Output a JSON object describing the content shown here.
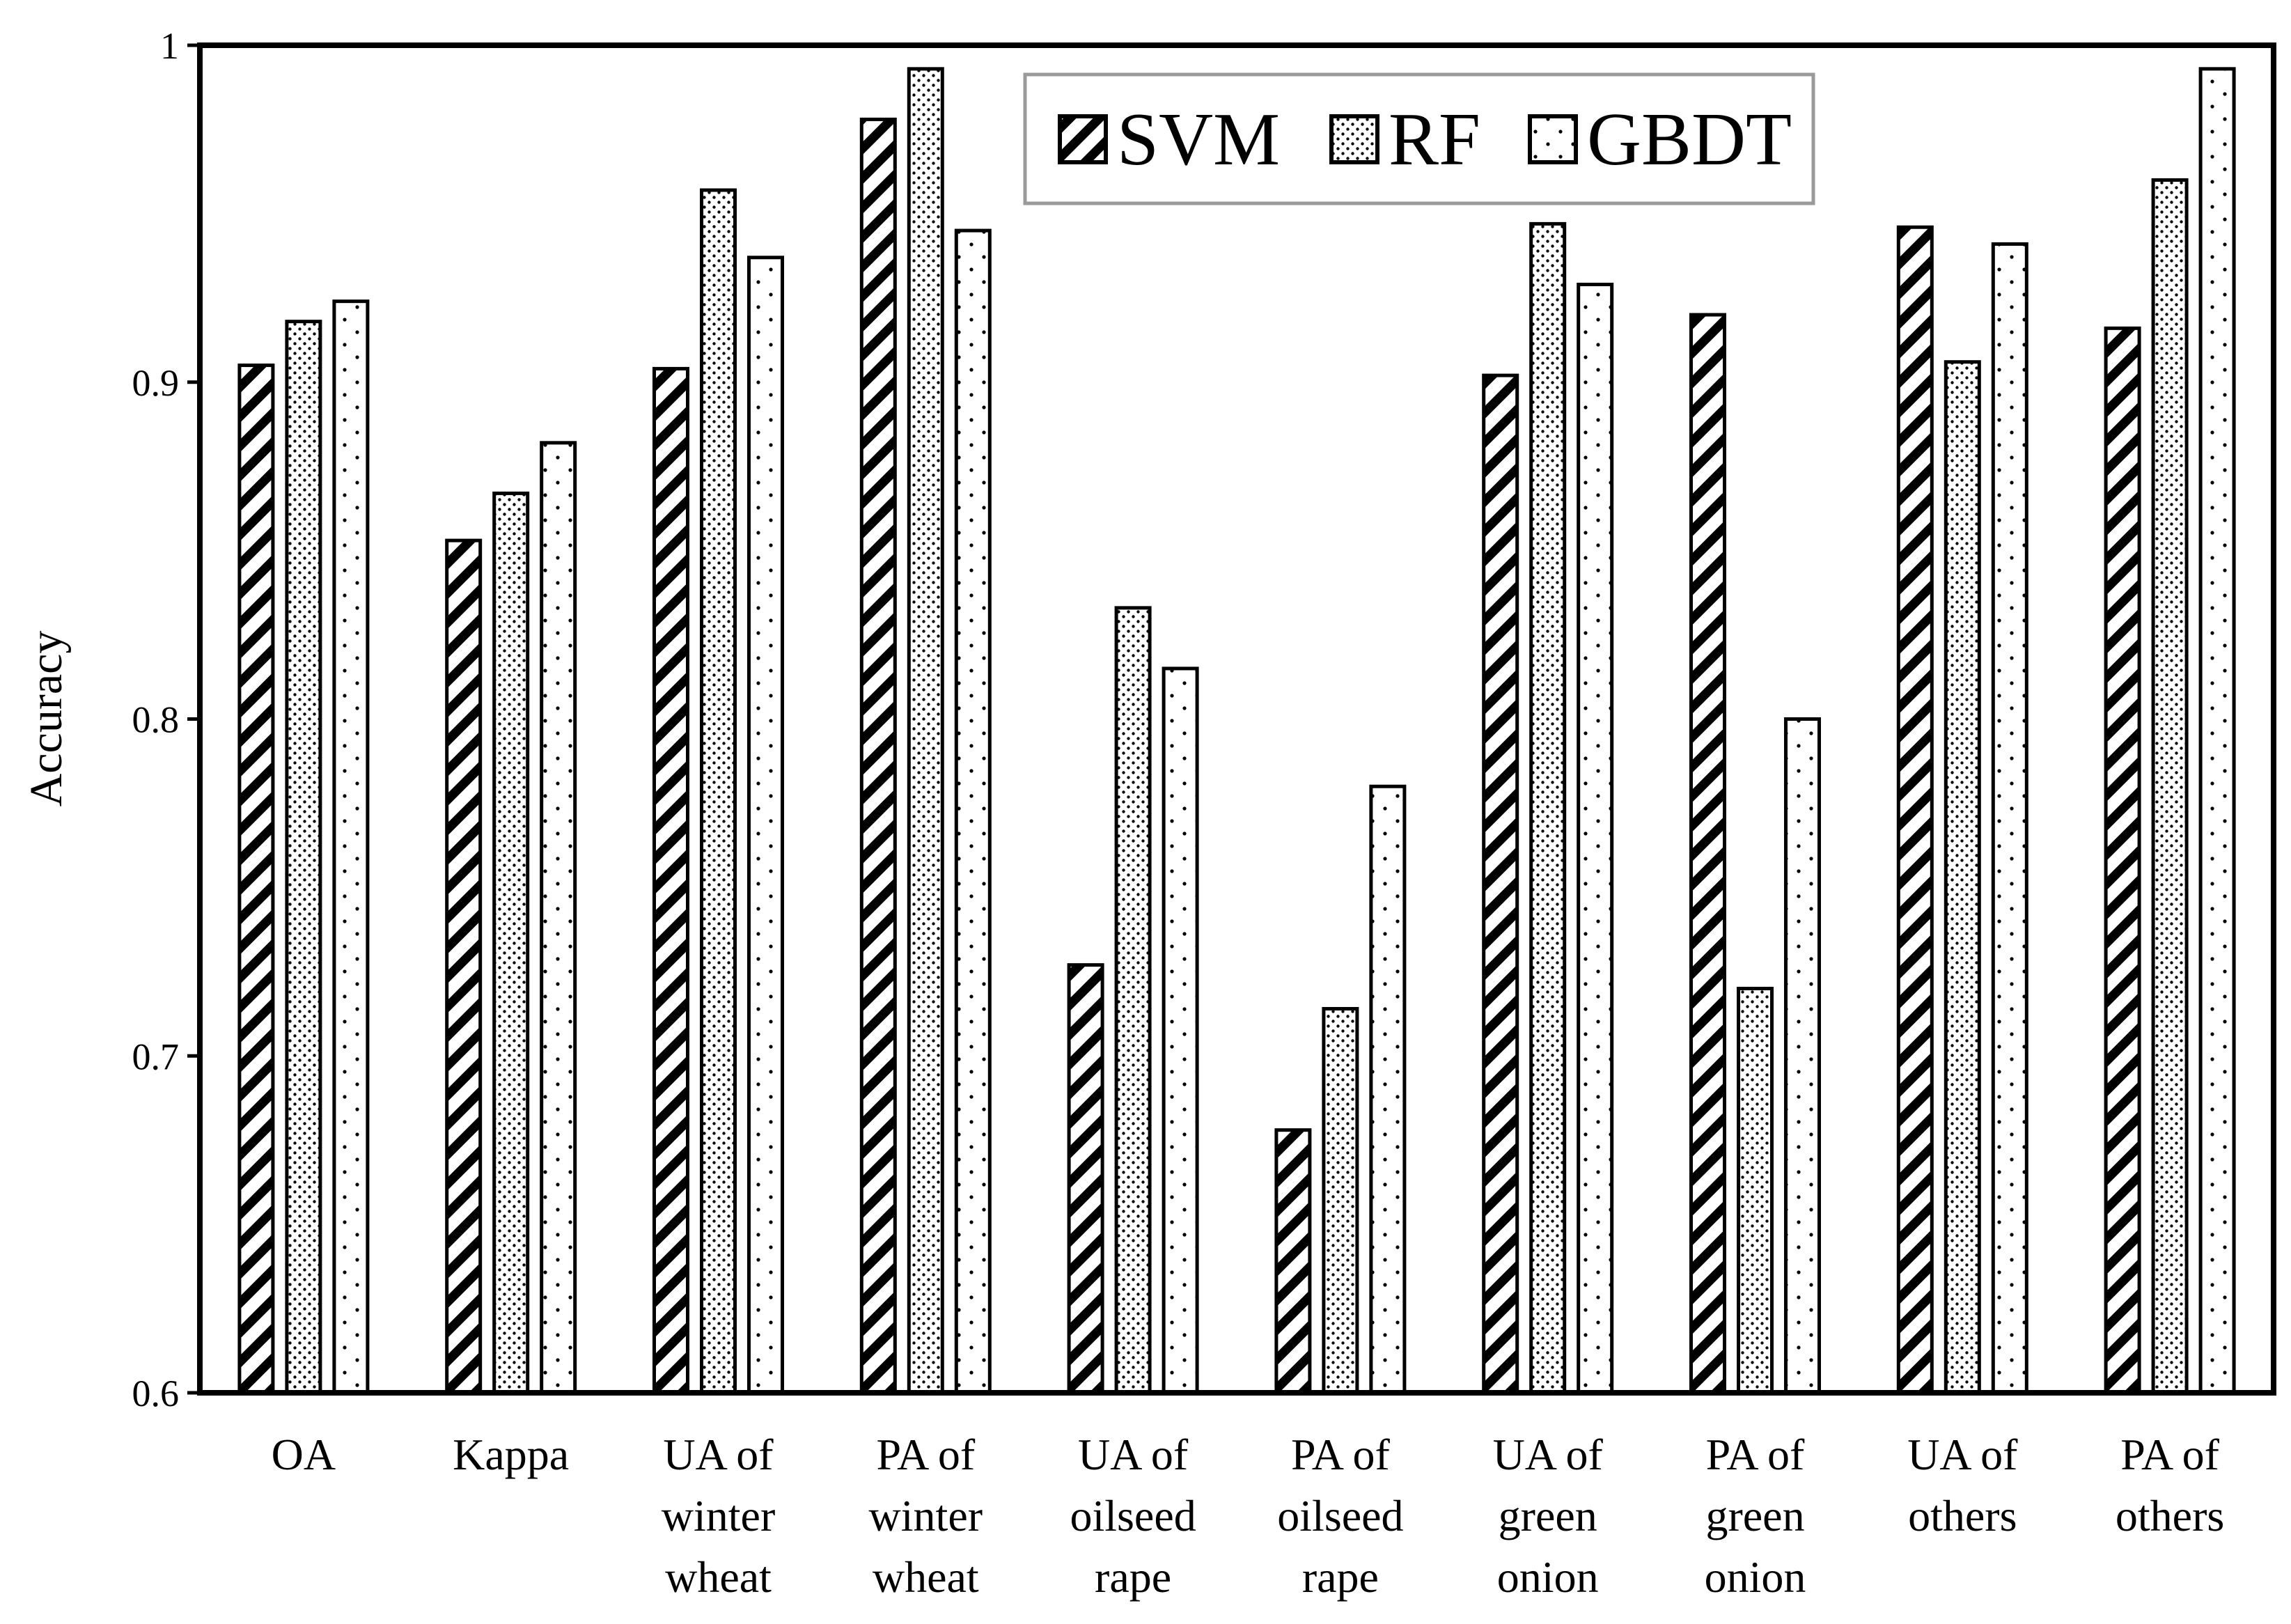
{
  "chart_data": {
    "type": "bar",
    "title": "",
    "xlabel": "",
    "ylabel": "Accuracy",
    "ylim": [
      0.6,
      1.0
    ],
    "yticks": [
      "0.6",
      "0.7",
      "0.8",
      "0.9",
      "1"
    ],
    "grid": false,
    "legend_position": "top-right",
    "categories": [
      [
        "OA"
      ],
      [
        "Kappa"
      ],
      [
        "UA of",
        "winter",
        "wheat"
      ],
      [
        "PA of",
        "winter",
        "wheat"
      ],
      [
        "UA of",
        "oilseed",
        "rape"
      ],
      [
        "PA of",
        "oilseed",
        "rape"
      ],
      [
        "UA of",
        "green",
        "onion"
      ],
      [
        "PA of",
        "green",
        "onion"
      ],
      [
        "UA of",
        "others"
      ],
      [
        "PA of",
        "others"
      ]
    ],
    "series": [
      {
        "name": "SVM",
        "pattern": "diagonal-hatch",
        "values": [
          0.905,
          0.853,
          0.904,
          0.978,
          0.727,
          0.678,
          0.902,
          0.92,
          0.946,
          0.916
        ]
      },
      {
        "name": "RF",
        "pattern": "dots",
        "values": [
          0.918,
          0.867,
          0.957,
          0.993,
          0.833,
          0.714,
          0.947,
          0.72,
          0.906,
          0.96
        ]
      },
      {
        "name": "GBDT",
        "pattern": "sparse-dots",
        "values": [
          0.924,
          0.882,
          0.937,
          0.945,
          0.815,
          0.78,
          0.929,
          0.8,
          0.941,
          0.993
        ]
      }
    ]
  }
}
